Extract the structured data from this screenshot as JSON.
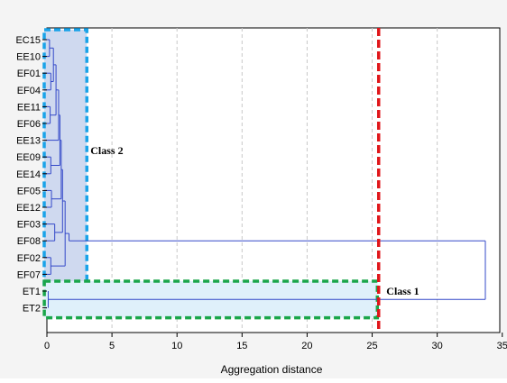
{
  "chart_data": {
    "type": "dendrogram",
    "xlabel": "Aggregation distance",
    "xlim": [
      0,
      35
    ],
    "x_ticks": [
      0,
      5,
      10,
      15,
      20,
      25,
      30,
      35
    ],
    "x_tick_labels": [
      "0",
      "5",
      "10",
      "15",
      "20",
      "25",
      "30",
      "35"
    ],
    "grid": "vertical-dashed",
    "leaves": [
      "EC15",
      "EE10",
      "EF01",
      "EF04",
      "EE11",
      "EF06",
      "EE13",
      "EE09",
      "EE14",
      "EF05",
      "EE12",
      "EF03",
      "EF08",
      "EF02",
      "EF07",
      "ET1",
      "ET2"
    ],
    "class_2_merges": [
      {
        "a": "EC15",
        "b": "EE10",
        "height": 0.2
      },
      {
        "a": "EF01",
        "b": "EF04",
        "height": 0.3
      },
      {
        "a": "EE11",
        "b": "EF06",
        "height": 0.25
      },
      {
        "a": "EE09",
        "b": "EE14",
        "height": 0.3
      },
      {
        "a": "EF05",
        "b": "EE12",
        "height": 0.35
      },
      {
        "a": "EF02",
        "b": "EF07",
        "height": 0.3
      },
      {
        "a": "EF03",
        "b": "EF08",
        "height": 0.6
      }
    ],
    "class_2_upper_merge_heights": [
      0.5,
      0.7,
      0.9,
      1.0,
      1.1,
      1.2,
      1.4,
      1.5,
      1.7
    ],
    "top_merge": {
      "groups": [
        "Class 2",
        "Class 1"
      ],
      "height": 33.7
    },
    "class_1_merge": {
      "a": "ET1",
      "b": "ET2",
      "height": 0.1
    },
    "cut_line": {
      "x": 25.5,
      "color": "#e0161a"
    },
    "annotations": [
      {
        "text": "Class 2",
        "box_color": "#1aa3e8",
        "x_range": [
          0,
          3
        ],
        "leaves": [
          "EC15",
          "EF07"
        ]
      },
      {
        "text": "Class 1",
        "box_color": "#1aa64a",
        "x_range": [
          -0.2,
          25.4
        ],
        "leaves": [
          "ET1",
          "ET2"
        ]
      }
    ],
    "colors": {
      "dendrogram": "#3348c8",
      "grid": "#c8c8c8",
      "class2_fill": "#cfd9ef",
      "class1_fill": "#dff0fa"
    }
  }
}
